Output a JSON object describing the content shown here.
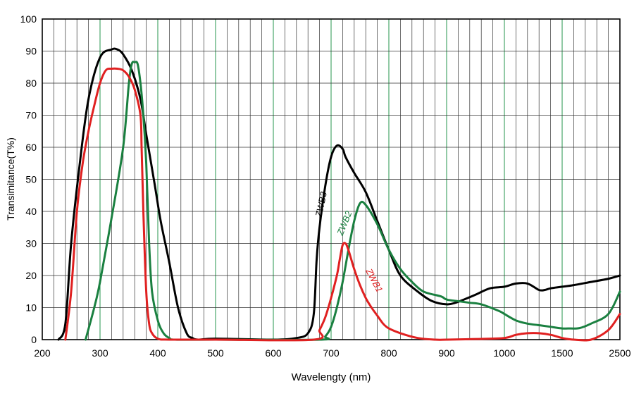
{
  "chart_data": {
    "type": "line",
    "title": "",
    "xlabel": "Wavelengty (nm)",
    "ylabel": "Transimitance(T%)",
    "ylim": [
      0,
      100
    ],
    "yticks": [
      0,
      10,
      20,
      30,
      40,
      50,
      60,
      70,
      80,
      90,
      100
    ],
    "xticks": [
      200,
      300,
      400,
      500,
      600,
      700,
      800,
      900,
      1000,
      1500,
      2500
    ],
    "xlim": [
      200,
      2500
    ],
    "grid": true,
    "colors": {
      "ZWB1": "#e02020",
      "ZWB2": "#1a8040",
      "ZWB3": "#000000"
    },
    "series": [
      {
        "name": "ZWB3",
        "x": [
          228,
          240,
          250,
          265,
          280,
          300,
          320,
          330,
          340,
          355,
          370,
          380,
          395,
          405,
          420,
          435,
          450,
          460,
          470,
          500,
          600,
          640,
          660,
          670,
          675,
          680,
          690,
          700,
          710,
          720,
          725,
          740,
          760,
          780,
          800,
          820,
          850,
          875,
          900,
          915,
          930,
          950,
          975,
          1000,
          1100,
          1200,
          1300,
          1350,
          1400,
          1500,
          1700,
          2000,
          2300,
          2500
        ],
        "y": [
          0,
          5,
          30,
          55,
          75,
          88,
          90.5,
          90.5,
          89,
          84,
          75,
          64,
          48,
          37,
          24,
          10,
          2,
          0.5,
          0,
          0.3,
          0,
          0.5,
          2,
          8,
          25,
          35,
          48,
          57,
          60.5,
          59.5,
          57,
          52,
          46,
          37,
          28,
          20,
          15,
          12,
          11,
          11.5,
          12.5,
          14,
          16,
          16.5,
          17.5,
          17.5,
          15.5,
          15.5,
          16,
          16.5,
          17,
          18,
          19,
          20
        ]
      },
      {
        "name": "ZWB2",
        "x": [
          275,
          290,
          300,
          320,
          340,
          350,
          355,
          360,
          365,
          370,
          375,
          380,
          385,
          390,
          400,
          410,
          420,
          430,
          500,
          680,
          690,
          700,
          710,
          720,
          730,
          740,
          750,
          760,
          780,
          800,
          820,
          840,
          860,
          890,
          900,
          920,
          940,
          960,
          990,
          1000,
          1100,
          1200,
          1300,
          1400,
          1500,
          1600,
          1800,
          2000,
          2300,
          2500
        ],
        "y": [
          0,
          10,
          18,
          38,
          60,
          80,
          86,
          86.5,
          86,
          80,
          70,
          55,
          30,
          15,
          6,
          2,
          0.5,
          0,
          0,
          0,
          1,
          4,
          10,
          18,
          28,
          37,
          42.5,
          42,
          36,
          28,
          22,
          18,
          15,
          13.5,
          12.5,
          12,
          11.5,
          11,
          9,
          8,
          6,
          5,
          4.5,
          4,
          3.5,
          3.5,
          3.6,
          5,
          8,
          15
        ]
      },
      {
        "name": "ZWB1",
        "x": [
          240,
          250,
          260,
          270,
          280,
          290,
          300,
          310,
          320,
          330,
          340,
          350,
          360,
          370,
          372,
          375,
          380,
          385,
          390,
          400,
          420,
          500,
          670,
          680,
          690,
          700,
          710,
          715,
          720,
          725,
          730,
          740,
          750,
          760,
          770,
          780,
          790,
          800,
          820,
          850,
          880,
          900,
          950,
          1000,
          1100,
          1200,
          1300,
          1400,
          1500,
          1600,
          1700,
          2000,
          2300,
          2500
        ],
        "y": [
          0,
          15,
          40,
          55,
          65,
          73,
          80,
          84,
          84.5,
          84.5,
          84,
          82,
          78,
          70,
          60,
          40,
          15,
          5,
          2,
          0.3,
          0,
          0,
          0,
          3,
          7,
          13,
          20,
          25,
          29.5,
          30,
          28,
          22,
          17,
          13,
          10,
          7.5,
          5,
          3.5,
          2,
          0.5,
          0,
          0,
          0.2,
          0.5,
          1.5,
          2,
          2,
          1.5,
          0.5,
          0.2,
          0,
          0,
          3,
          8
        ]
      }
    ],
    "annotations": [
      {
        "text": "ZWB3",
        "series": "ZWB3"
      },
      {
        "text": "ZWB2",
        "series": "ZWB2"
      },
      {
        "text": "ZWB1",
        "series": "ZWB1"
      }
    ]
  }
}
